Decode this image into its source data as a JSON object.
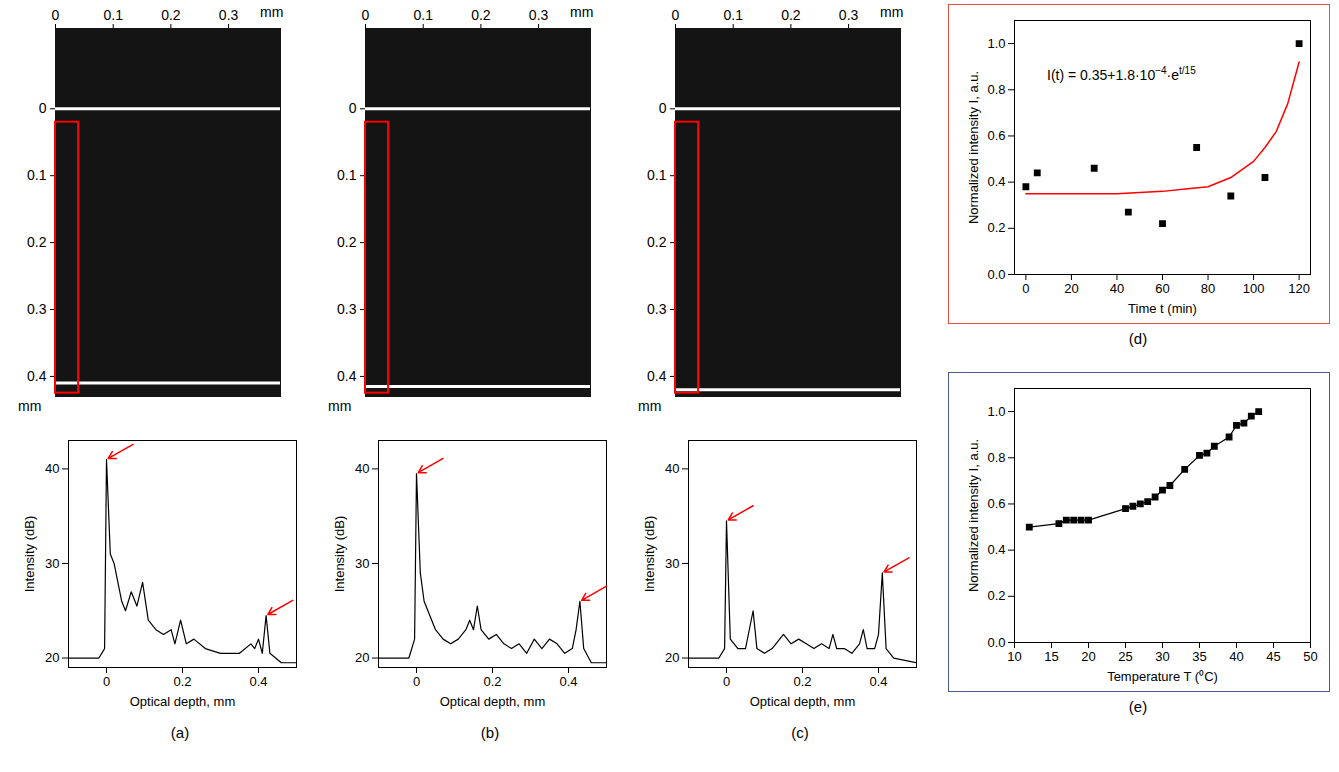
{
  "chart_data": [
    {
      "panel_label": "(a)",
      "type": "line",
      "x_label": "Optical depth, mm",
      "y_label": "Intensity (dB)",
      "x": [
        -0.1,
        -0.02,
        -0.005,
        0,
        0.01,
        0.02,
        0.04,
        0.05,
        0.065,
        0.08,
        0.095,
        0.11,
        0.13,
        0.15,
        0.17,
        0.18,
        0.195,
        0.21,
        0.23,
        0.26,
        0.3,
        0.35,
        0.38,
        0.39,
        0.4,
        0.41,
        0.42,
        0.43,
        0.46,
        0.5
      ],
      "values": [
        20,
        20,
        21,
        41,
        31,
        30,
        26,
        25,
        27,
        25.5,
        28,
        24,
        23,
        22.5,
        23,
        21.5,
        24,
        21.5,
        22,
        21,
        20.5,
        20.5,
        21.5,
        21,
        22,
        20.5,
        24.5,
        20.5,
        19.5,
        19.5
      ],
      "color": "#000000",
      "arrows": [
        {
          "x": 0,
          "y": 41
        },
        {
          "x": 0.42,
          "y": 24.5
        }
      ],
      "arrow_color": "#ff0000",
      "xlim": [
        -0.1,
        0.5
      ],
      "xticks": [
        0,
        0.2,
        0.4
      ],
      "ylim": [
        19,
        43
      ],
      "yticks": [
        20,
        30,
        40
      ]
    },
    {
      "panel_label": "(b)",
      "type": "line",
      "x_label": "Optical depth, mm",
      "y_label": "Intensity (dB)",
      "x": [
        -0.1,
        -0.02,
        -0.005,
        0,
        0.01,
        0.02,
        0.03,
        0.05,
        0.07,
        0.09,
        0.11,
        0.13,
        0.14,
        0.15,
        0.16,
        0.17,
        0.19,
        0.21,
        0.23,
        0.25,
        0.27,
        0.29,
        0.31,
        0.33,
        0.35,
        0.37,
        0.39,
        0.41,
        0.42,
        0.43,
        0.44,
        0.46,
        0.5
      ],
      "values": [
        20,
        20,
        22,
        39.5,
        29,
        26,
        25,
        23,
        22,
        21.5,
        22,
        23,
        24,
        23,
        25.5,
        23,
        22,
        22.5,
        21.5,
        21,
        21.5,
        20.5,
        22,
        21,
        22,
        21.5,
        20.5,
        21,
        23,
        26,
        21,
        19.5,
        19.5
      ],
      "color": "#000000",
      "arrows": [
        {
          "x": 0,
          "y": 39.5
        },
        {
          "x": 0.43,
          "y": 26
        }
      ],
      "arrow_color": "#ff0000",
      "xlim": [
        -0.1,
        0.5
      ],
      "xticks": [
        0,
        0.2,
        0.4
      ],
      "ylim": [
        19,
        43
      ],
      "yticks": [
        20,
        30,
        40
      ]
    },
    {
      "panel_label": "(c)",
      "type": "line",
      "x_label": "Optical depth, mm",
      "y_label": "Intensity (dB)",
      "x": [
        -0.1,
        -0.02,
        -0.005,
        0,
        0.01,
        0.03,
        0.05,
        0.07,
        0.08,
        0.1,
        0.12,
        0.15,
        0.17,
        0.19,
        0.21,
        0.23,
        0.25,
        0.27,
        0.28,
        0.29,
        0.31,
        0.33,
        0.34,
        0.35,
        0.36,
        0.37,
        0.39,
        0.4,
        0.41,
        0.42,
        0.44,
        0.5
      ],
      "values": [
        20,
        20,
        21,
        34.5,
        22,
        21,
        21,
        25,
        21,
        20.5,
        21,
        22.5,
        21.5,
        22,
        21.5,
        21,
        21.5,
        21,
        22.5,
        21,
        21,
        20.5,
        21,
        21.5,
        23,
        21,
        21,
        22.5,
        29,
        21,
        20,
        19.5
      ],
      "color": "#000000",
      "arrows": [
        {
          "x": 0,
          "y": 34.5
        },
        {
          "x": 0.41,
          "y": 29
        }
      ],
      "arrow_color": "#ff0000",
      "xlim": [
        -0.1,
        0.5
      ],
      "xticks": [
        0,
        0.2,
        0.4
      ],
      "ylim": [
        19,
        43
      ],
      "yticks": [
        20,
        30,
        40
      ]
    },
    {
      "panel_label": "(d)",
      "type": "scatter",
      "x_label": "Time t (min)",
      "y_label": "Normalized intensity I, a.u.",
      "x": [
        0,
        5,
        30,
        45,
        60,
        75,
        90,
        105,
        120
      ],
      "values": [
        0.38,
        0.44,
        0.46,
        0.27,
        0.22,
        0.55,
        0.34,
        0.42,
        1.0
      ],
      "color": "#000000",
      "marker": "square",
      "fit": {
        "type": "line",
        "color": "#ff0000",
        "x": [
          0,
          20,
          40,
          60,
          70,
          80,
          90,
          100,
          105,
          110,
          115,
          120
        ],
        "values": [
          0.35,
          0.35,
          0.35,
          0.36,
          0.37,
          0.38,
          0.42,
          0.49,
          0.55,
          0.62,
          0.74,
          0.92
        ]
      },
      "annotation": [
        "I(t) = 0.35+1.8·10",
        {
          "sup": "−4"
        },
        "·e",
        {
          "sup": "t/15"
        }
      ],
      "xlim": [
        -5,
        125
      ],
      "xticks": [
        0,
        20,
        40,
        60,
        80,
        100,
        120
      ],
      "ylim": [
        0,
        1.1
      ],
      "yticks": [
        {
          "value": 0,
          "label": "0.0"
        },
        0.2,
        0.4,
        0.6,
        0.8,
        {
          "value": 1,
          "label": "1.0"
        }
      ]
    },
    {
      "panel_label": "(e)",
      "type": "line",
      "x_label": "Temperature T (⁰C)",
      "y_label": "Normalized intensity I, a.u.",
      "x": [
        12,
        16,
        17,
        18,
        19,
        20,
        25,
        26,
        27,
        28,
        29,
        30,
        31,
        33,
        35,
        36,
        37,
        39,
        40,
        41,
        42,
        43
      ],
      "values": [
        0.5,
        0.515,
        0.53,
        0.53,
        0.53,
        0.53,
        0.58,
        0.59,
        0.6,
        0.61,
        0.63,
        0.66,
        0.68,
        0.75,
        0.81,
        0.82,
        0.85,
        0.89,
        0.94,
        0.95,
        0.98,
        1.0
      ],
      "color": "#000000",
      "marker": "square",
      "xlim": [
        10,
        50
      ],
      "xticks": [
        10,
        15,
        20,
        25,
        30,
        35,
        40,
        45,
        50
      ],
      "ylim": [
        0,
        1.1
      ],
      "yticks": [
        {
          "value": 0,
          "label": "0.0"
        },
        0.2,
        0.4,
        0.6,
        0.8,
        {
          "value": 1,
          "label": "1.0"
        }
      ]
    }
  ],
  "images": [
    {
      "x_unit": "mm",
      "y_unit": "mm",
      "xlim": [
        0,
        0.39
      ],
      "xticks": [
        0,
        0.1,
        0.2,
        0.3
      ],
      "ylim": [
        -0.12,
        0.43
      ],
      "yticks": [
        0,
        0.1,
        0.2,
        0.3,
        0.4
      ],
      "bright_lines": [
        0,
        0.41
      ],
      "roi": {
        "x1": 0,
        "x2": 0.04,
        "y1": 0.02,
        "y2": 0.425
      },
      "roi_color": "#ff0000"
    },
    {
      "x_unit": "mm",
      "y_unit": "mm",
      "xlim": [
        0,
        0.39
      ],
      "xticks": [
        0,
        0.1,
        0.2,
        0.3
      ],
      "ylim": [
        -0.12,
        0.43
      ],
      "yticks": [
        0,
        0.1,
        0.2,
        0.3,
        0.4
      ],
      "bright_lines": [
        0,
        0.415
      ],
      "roi": {
        "x1": 0,
        "x2": 0.04,
        "y1": 0.02,
        "y2": 0.425
      },
      "roi_color": "#ff0000"
    },
    {
      "x_unit": "mm",
      "y_unit": "mm",
      "xlim": [
        0,
        0.39
      ],
      "xticks": [
        0,
        0.1,
        0.2,
        0.3
      ],
      "ylim": [
        -0.12,
        0.43
      ],
      "yticks": [
        0,
        0.1,
        0.2,
        0.3,
        0.4
      ],
      "bright_lines": [
        0,
        0.42
      ],
      "roi": {
        "x1": 0,
        "x2": 0.04,
        "y1": 0.02,
        "y2": 0.425
      },
      "roi_color": "#ff0000"
    }
  ]
}
